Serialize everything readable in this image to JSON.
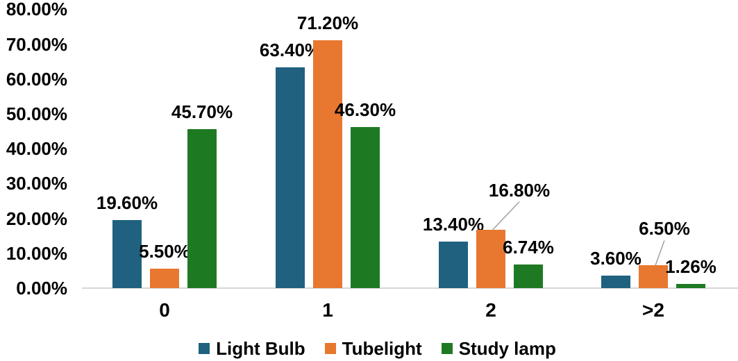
{
  "chart_data": {
    "type": "bar",
    "categories": [
      "0",
      "1",
      "2",
      ">2"
    ],
    "series": [
      {
        "name": "Light Bulb",
        "color": "#1F617F",
        "values": [
          19.6,
          63.4,
          13.4,
          3.6
        ],
        "labels": [
          "19.60%",
          "63.40%",
          "13.40%",
          "3.60%"
        ]
      },
      {
        "name": "Tubelight",
        "color": "#E8772F",
        "values": [
          5.5,
          71.2,
          16.8,
          6.5
        ],
        "labels": [
          "5.50%",
          "71.20%",
          "16.80%",
          "6.50%"
        ]
      },
      {
        "name": "Study lamp",
        "color": "#1E7A22",
        "values": [
          45.7,
          46.3,
          6.74,
          1.26
        ],
        "labels": [
          "45.70%",
          "46.30%",
          "6.74%",
          "1.26%"
        ]
      }
    ],
    "y_axis": {
      "min": 0,
      "max": 80,
      "step": 10,
      "tick_labels": [
        "0.00%",
        "10.00%",
        "20.00%",
        "30.00%",
        "40.00%",
        "50.00%",
        "60.00%",
        "70.00%",
        "80.00%"
      ]
    },
    "gridlines": false,
    "legend": {
      "position": "bottom",
      "items": [
        "Light Bulb",
        "Tubelight",
        "Study lamp"
      ]
    },
    "label_overrides": [
      {
        "series": 1,
        "category": 2,
        "dx": 41,
        "raise": 32,
        "leader": true
      },
      {
        "series": 1,
        "category": 3,
        "dx": 16,
        "raise": 28,
        "leader": true
      }
    ],
    "axis_color": "#D6D6D6",
    "leader_color": "#A0A0A0",
    "text_color": "#000000"
  }
}
